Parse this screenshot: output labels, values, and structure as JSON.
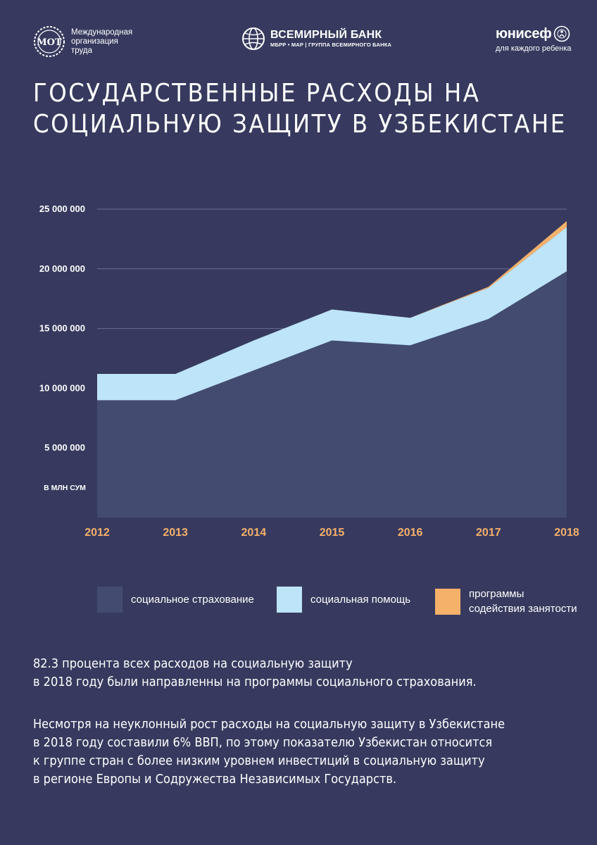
{
  "logos": {
    "ilo": {
      "lines": [
        "Международная",
        "организация",
        "труда"
      ],
      "mark": "ilo-emblem"
    },
    "world_bank": {
      "name": "ВСЕМИРНЫЙ БАНК",
      "sub": "МБРР • МАР | ГРУППА ВСЕМИРНОГО БАНКА",
      "mark": "globe-icon"
    },
    "unicef": {
      "name": "юнисеф",
      "tagline": "для каждого ребенка",
      "mark": "unicef-emblem"
    }
  },
  "title": {
    "lines": [
      "ГОСУДАРСТВЕННЫЕ РАСХОДЫ НА",
      "СОЦИАЛЬНУЮ ЗАЩИТУ В УЗБЕКИСТАНЕ"
    ]
  },
  "chart_data": {
    "type": "area",
    "stacked": true,
    "unit_label": "в млн сум",
    "x": [
      "2012",
      "2013",
      "2014",
      "2015",
      "2016",
      "2017",
      "2018"
    ],
    "y_ticks": [
      5000000,
      10000000,
      15000000,
      20000000,
      25000000
    ],
    "y_tick_labels": [
      "5 000 000",
      "10 000 000",
      "15 000 000",
      "20 000 000",
      "25 000 000"
    ],
    "ylim": [
      0,
      25000000
    ],
    "grid": true,
    "legend_position": "bottom",
    "series": [
      {
        "name": "социальное страхование",
        "color": "#434b70",
        "values": [
          9000000,
          9000000,
          11500000,
          14000000,
          13600000,
          15800000,
          19800000
        ]
      },
      {
        "name": "социальная помощь",
        "color": "#bde4f8",
        "values": [
          2200000,
          2200000,
          2500000,
          2600000,
          2300000,
          2600000,
          3700000
        ]
      },
      {
        "name": "программы содействия занятости",
        "color": "#f5b06a",
        "values": [
          0,
          0,
          0,
          0,
          0,
          100000,
          500000
        ]
      }
    ]
  },
  "legend": {
    "items": [
      {
        "lines": [
          "социальное страхование"
        ],
        "color": "#434b70"
      },
      {
        "lines": [
          "социальная помощь"
        ],
        "color": "#bde4f8"
      },
      {
        "lines": [
          "программы",
          "содействия занятости"
        ],
        "color": "#f5b06a"
      }
    ]
  },
  "paragraphs": [
    {
      "lines": [
        "82.3 процента всех расходов на социальную защиту",
        "в 2018 году были направленны на программы социального страхования."
      ]
    },
    {
      "lines": [
        "Несмотря на неуклонный рост расходы на социальную защиту в Узбекистане",
        "в 2018 году составили 6% ВВП, по этому показателю Узбекистан относится",
        "к группе стран с более низким уровнем инвестиций в социальную защиту",
        "в регионе Европы и Содружества Независимых Государств."
      ]
    }
  ]
}
